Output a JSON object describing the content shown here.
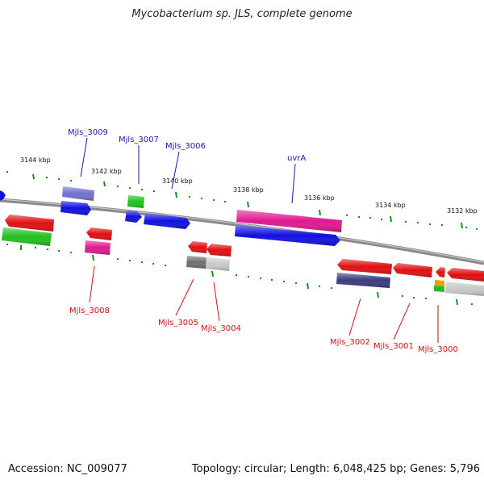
{
  "header": {
    "title": "Mycobacterium sp. JLS, complete genome"
  },
  "footer": {
    "accession": "Accession: NC_009077",
    "summary": "Topology: circular; Length: 6,048,425 bp; Genes: 5,796"
  },
  "axis": {
    "ticks": [
      "3144 kbp",
      "3142 kbp",
      "3140 kbp",
      "3138 kbp",
      "3136 kbp",
      "3134 kbp",
      "3132 kbp"
    ]
  },
  "colors": {
    "backbone": "#8a8a8a",
    "tick": "#1f8a1f",
    "label_forward": "#1a1aa8",
    "label_reverse": "#c81414",
    "red": "#e01010",
    "blue": "#1010e0",
    "green": "#20c020",
    "pink": "#e01890",
    "navy": "#3a3a80",
    "lavender": "#7070d0",
    "gray": "#707070",
    "lightgray": "#c8c8c8",
    "orange": "#f0a000"
  },
  "genes": {
    "forward": [
      "Mjls_3009",
      "Mjls_3007",
      "Mjls_3006",
      "uvrA"
    ],
    "reverse": [
      "Mjls_3008",
      "Mjls_3005",
      "Mjls_3004",
      "Mjls_3002",
      "Mjls_3001",
      "Mjls_3000"
    ]
  }
}
